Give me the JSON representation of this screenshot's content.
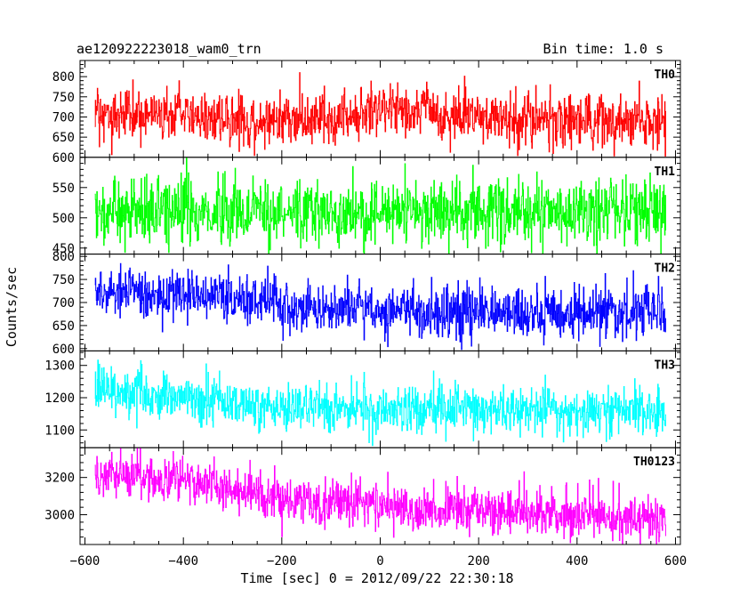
{
  "header": {
    "left": "ae120922223018_wam0_trn",
    "right": "Bin time: 1.0 s"
  },
  "chart_data": {
    "type": "line",
    "xlabel": "Time [sec] 0 = 2012/09/22 22:30:18",
    "ylabel": "Counts/sec",
    "xlim": [
      -610,
      610
    ],
    "x_ticks": [
      -600,
      -400,
      -200,
      0,
      200,
      400,
      600
    ],
    "bin_time_s": 1.0,
    "x_range": [
      -580,
      580
    ],
    "panels": [
      {
        "name": "TH0",
        "color": "#ff0000",
        "ylim": [
          600,
          840
        ],
        "y_ticks": [
          600,
          650,
          700,
          750,
          800
        ],
        "levels": [
          [
            -580,
            710
          ],
          [
            -400,
            705
          ],
          [
            -300,
            690
          ],
          [
            -100,
            690
          ],
          [
            0,
            715
          ],
          [
            100,
            720
          ],
          [
            130,
            700
          ],
          [
            580,
            685
          ]
        ],
        "noise_sd": 33
      },
      {
        "name": "TH1",
        "color": "#00ff00",
        "ylim": [
          440,
          600
        ],
        "y_ticks": [
          450,
          500,
          550
        ],
        "levels": [
          [
            -580,
            510
          ],
          [
            580,
            510
          ]
        ],
        "noise_sd": 28
      },
      {
        "name": "TH2",
        "color": "#0000ff",
        "ylim": [
          595,
          805
        ],
        "y_ticks": [
          600,
          650,
          700,
          750,
          800
        ],
        "levels": [
          [
            -580,
            725
          ],
          [
            -210,
            705
          ],
          [
            -200,
            685
          ],
          [
            580,
            680
          ]
        ],
        "noise_sd": 28
      },
      {
        "name": "TH3",
        "color": "#00ffff",
        "ylim": [
          1045,
          1345
        ],
        "y_ticks": [
          1100,
          1200,
          1300
        ],
        "levels": [
          [
            -580,
            1230
          ],
          [
            -400,
            1200
          ],
          [
            -200,
            1165
          ],
          [
            580,
            1160
          ]
        ],
        "noise_sd": 38
      },
      {
        "name": "TH0123",
        "color": "#ff00ff",
        "ylim": [
          2840,
          3360
        ],
        "y_ticks": [
          3000,
          3200
        ],
        "levels": [
          [
            -580,
            3230
          ],
          [
            -400,
            3180
          ],
          [
            -200,
            3080
          ],
          [
            580,
            2970
          ]
        ],
        "noise_sd": 65
      }
    ]
  }
}
